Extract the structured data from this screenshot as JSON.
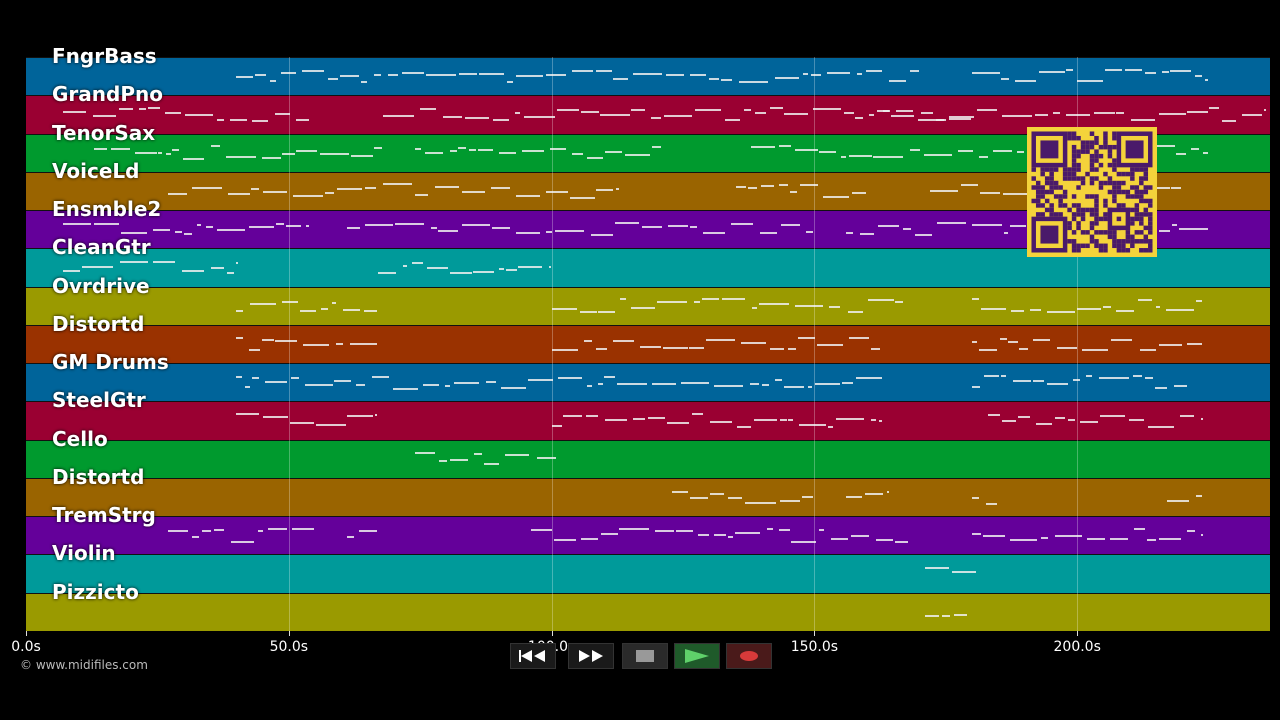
{
  "timeline": {
    "ticks": [
      "0.0s",
      "50.0s",
      "100.0s",
      "150.0s",
      "200.0s"
    ]
  },
  "tracks": [
    {
      "name": "FngrBass",
      "color": "#00649a"
    },
    {
      "name": "GrandPno",
      "color": "#9a0032"
    },
    {
      "name": "TenorSax",
      "color": "#009a2e"
    },
    {
      "name": "VoiceLd",
      "color": "#9a6400"
    },
    {
      "name": "Ensmble2",
      "color": "#64009a"
    },
    {
      "name": "CleanGtr",
      "color": "#009a9a"
    },
    {
      "name": "Ovrdrive",
      "color": "#9a9a00"
    },
    {
      "name": "Distortd",
      "color": "#9a3200"
    },
    {
      "name": "GM Drums",
      "color": "#00649a"
    },
    {
      "name": "SteelGtr",
      "color": "#9a0032"
    },
    {
      "name": "Cello",
      "color": "#009a2e"
    },
    {
      "name": "Distortd",
      "color": "#9a6400"
    },
    {
      "name": "TremStrg",
      "color": "#64009a"
    },
    {
      "name": "Violin",
      "color": "#009a9a"
    },
    {
      "name": "Pizzicto",
      "color": "#9a9a00"
    }
  ],
  "copyright": "© www.midifiles.com",
  "qr_color": "#f4d33b",
  "transport": {
    "buttons": [
      {
        "name": "rewind",
        "icon": "rewind-icon"
      },
      {
        "name": "fast-forward",
        "icon": "fast-forward-icon"
      },
      {
        "name": "stop",
        "icon": "stop-icon"
      },
      {
        "name": "play",
        "icon": "play-icon"
      },
      {
        "name": "record",
        "icon": "record-icon"
      }
    ]
  }
}
